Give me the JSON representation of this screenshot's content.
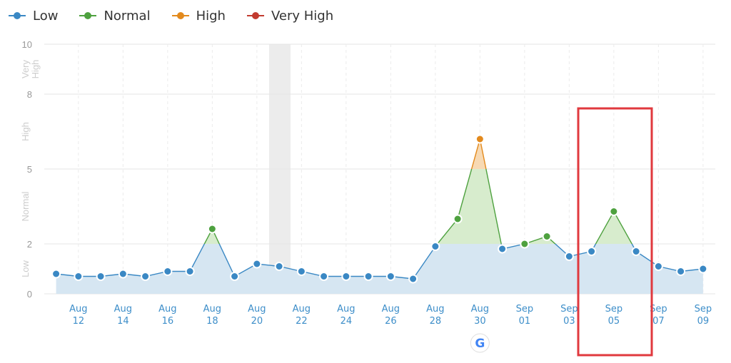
{
  "legend": [
    {
      "label": "Low",
      "color": "#3a88c4"
    },
    {
      "label": "Normal",
      "color": "#4ea13f"
    },
    {
      "label": "High",
      "color": "#e38a1d"
    },
    {
      "label": "Very High",
      "color": "#c23b2f"
    }
  ],
  "chart_data": {
    "type": "line",
    "x": [
      "Aug 11",
      "Aug 12",
      "Aug 13",
      "Aug 14",
      "Aug 15",
      "Aug 16",
      "Aug 17",
      "Aug 18",
      "Aug 19",
      "Aug 20",
      "Aug 21",
      "Aug 22",
      "Aug 23",
      "Aug 24",
      "Aug 25",
      "Aug 26",
      "Aug 27",
      "Aug 28",
      "Aug 29",
      "Aug 30",
      "Aug 31",
      "Sep 01",
      "Sep 02",
      "Sep 03",
      "Sep 04",
      "Sep 05",
      "Sep 06",
      "Sep 07",
      "Sep 08",
      "Sep 09"
    ],
    "values": [
      0.8,
      0.7,
      0.7,
      0.8,
      0.7,
      0.9,
      0.9,
      2.6,
      0.7,
      1.2,
      1.1,
      0.9,
      0.7,
      0.7,
      0.7,
      0.7,
      0.6,
      1.9,
      3.0,
      6.2,
      1.8,
      2.0,
      2.3,
      1.5,
      1.7,
      3.3,
      1.7,
      1.1,
      0.9,
      1.0
    ],
    "thresholds": [
      {
        "label": "Low",
        "from": 0,
        "to": 2,
        "color": "#3a88c4"
      },
      {
        "label": "Normal",
        "from": 2,
        "to": 5,
        "color": "#4ea13f"
      },
      {
        "label": "High",
        "from": 5,
        "to": 8,
        "color": "#e38a1d"
      },
      {
        "label": "Very High",
        "from": 8,
        "to": 10,
        "color": "#c23b2f"
      }
    ],
    "yticks": [
      "0",
      "2",
      "5",
      "8",
      "10"
    ],
    "ytick_values": [
      0,
      2,
      5,
      8,
      10
    ],
    "ylim": [
      0,
      10
    ],
    "band_labels": [
      "Low",
      "Normal",
      "High",
      "Very High"
    ],
    "xtick_labels": [
      {
        "idx": 1,
        "top": "Aug",
        "bottom": "12"
      },
      {
        "idx": 3,
        "top": "Aug",
        "bottom": "14"
      },
      {
        "idx": 5,
        "top": "Aug",
        "bottom": "16"
      },
      {
        "idx": 7,
        "top": "Aug",
        "bottom": "18"
      },
      {
        "idx": 9,
        "top": "Aug",
        "bottom": "20"
      },
      {
        "idx": 11,
        "top": "Aug",
        "bottom": "22"
      },
      {
        "idx": 13,
        "top": "Aug",
        "bottom": "24"
      },
      {
        "idx": 15,
        "top": "Aug",
        "bottom": "26"
      },
      {
        "idx": 17,
        "top": "Aug",
        "bottom": "28"
      },
      {
        "idx": 19,
        "top": "Aug",
        "bottom": "30"
      },
      {
        "idx": 21,
        "top": "Sep",
        "bottom": "01"
      },
      {
        "idx": 23,
        "top": "Sep",
        "bottom": "03"
      },
      {
        "idx": 25,
        "top": "Sep",
        "bottom": "05"
      },
      {
        "idx": 27,
        "top": "Sep",
        "bottom": "07"
      },
      {
        "idx": 29,
        "top": "Sep",
        "bottom": "09"
      }
    ],
    "grid": true,
    "highlighted_band": "Aug 21",
    "callout_box_around": "Sep 05",
    "google_update_marker": "Aug 30",
    "colors": {
      "area": "#d6e6f2",
      "callout": "#e0393e",
      "marker_band": "#ececec"
    }
  }
}
